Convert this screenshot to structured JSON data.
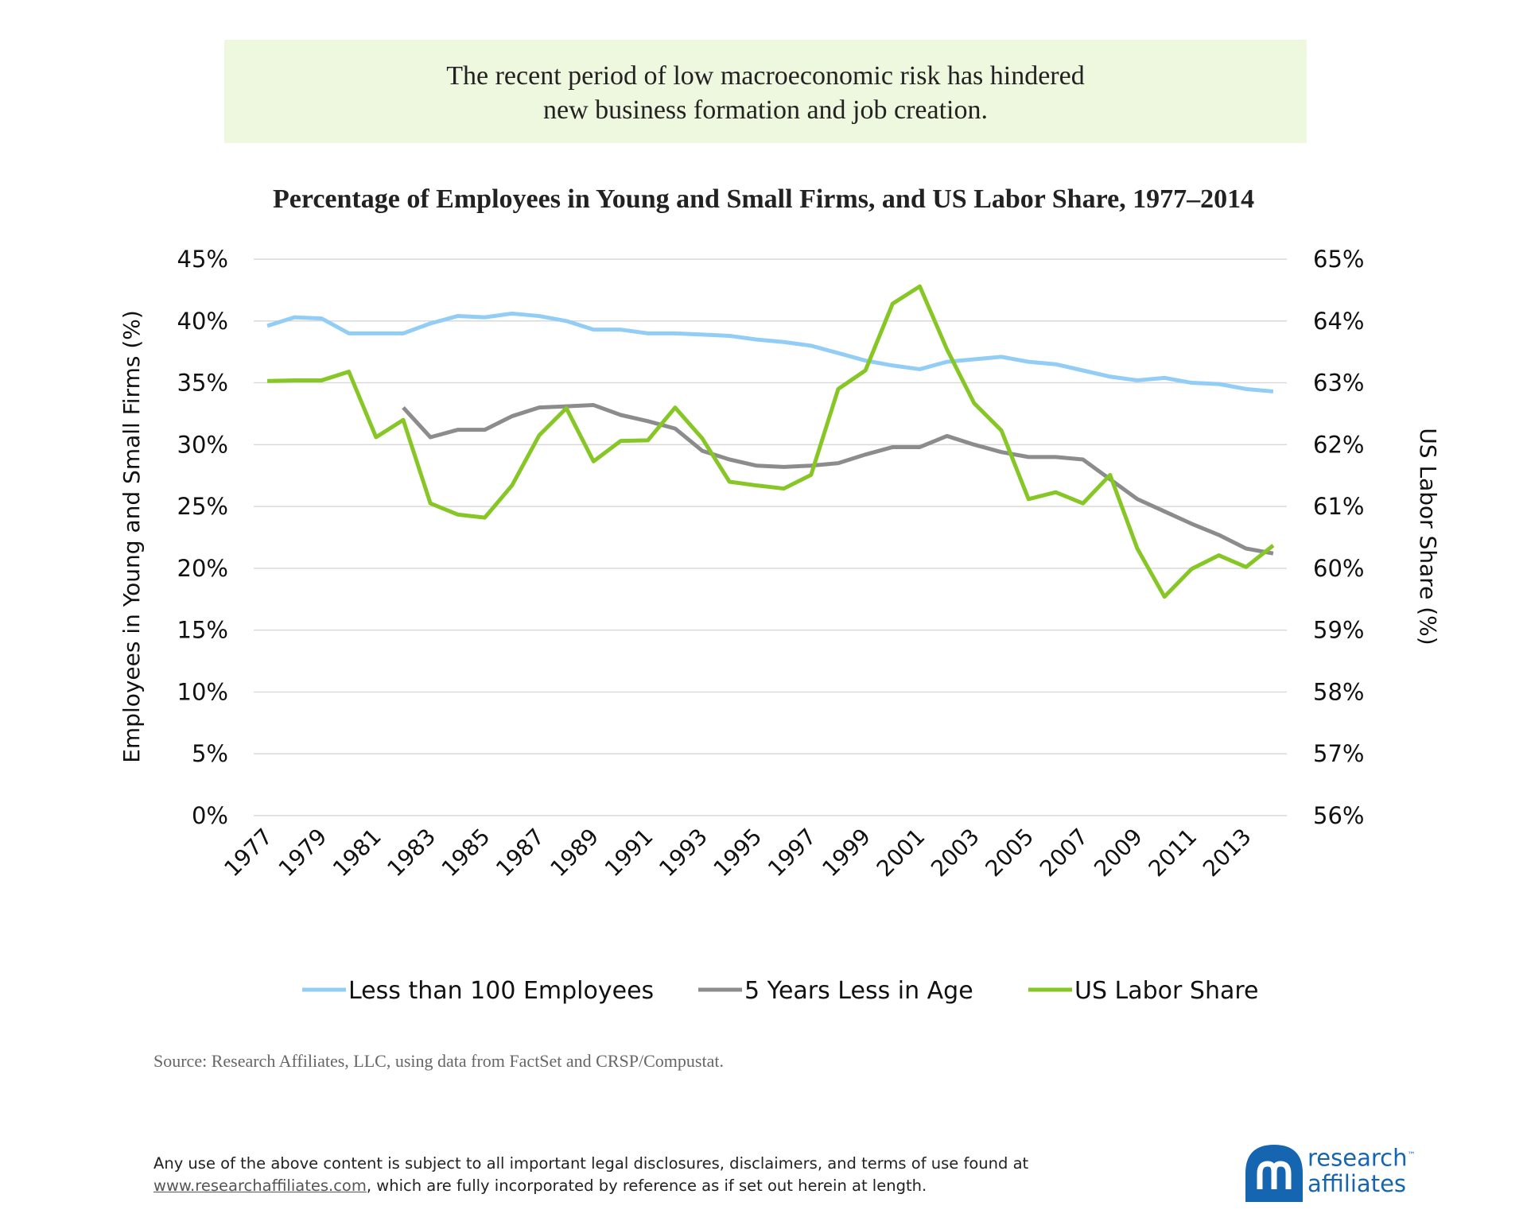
{
  "header": {
    "lines": [
      "The recent period of low macroeconomic risk has hindered",
      "new business formation and job creation."
    ]
  },
  "chart_data": {
    "type": "line",
    "title": "Percentage of Employees in Young and Small Firms, and US Labor Share, 1977–2014",
    "ylabel": "Employees in Young and Small Firms (%)",
    "y2label": "US Labor Share (%)",
    "x": [
      1977,
      1978,
      1979,
      1980,
      1981,
      1982,
      1983,
      1984,
      1985,
      1986,
      1987,
      1988,
      1989,
      1990,
      1991,
      1992,
      1993,
      1994,
      1995,
      1996,
      1997,
      1998,
      1999,
      2000,
      2001,
      2002,
      2003,
      2004,
      2005,
      2006,
      2007,
      2008,
      2009,
      2010,
      2011,
      2012,
      2013,
      2014
    ],
    "xlim": [
      1976.5,
      2014.5
    ],
    "xticks": [
      1977,
      1979,
      1981,
      1983,
      1985,
      1987,
      1989,
      1991,
      1993,
      1995,
      1997,
      1999,
      2001,
      2003,
      2005,
      2007,
      2009,
      2011,
      2013
    ],
    "ylim": [
      0,
      45
    ],
    "yticks": [
      {
        "value": 0,
        "label": "0%"
      },
      {
        "value": 5,
        "label": "5%"
      },
      {
        "value": 10,
        "label": "10%"
      },
      {
        "value": 15,
        "label": "15%"
      },
      {
        "value": 20,
        "label": "20%"
      },
      {
        "value": 25,
        "label": "25%"
      },
      {
        "value": 30,
        "label": "30%"
      },
      {
        "value": 35,
        "label": "35%"
      },
      {
        "value": 40,
        "label": "40%"
      },
      {
        "value": 45,
        "label": "45%"
      }
    ],
    "y2lim": [
      56,
      65
    ],
    "y2ticks": [
      {
        "value": 56,
        "label": "56%"
      },
      {
        "value": 57,
        "label": "57%"
      },
      {
        "value": 58,
        "label": "58%"
      },
      {
        "value": 59,
        "label": "59%"
      },
      {
        "value": 60,
        "label": "60%"
      },
      {
        "value": 61,
        "label": "61%"
      },
      {
        "value": 62,
        "label": "62%"
      },
      {
        "value": 63,
        "label": "63%"
      },
      {
        "value": 64,
        "label": "64%"
      },
      {
        "value": 65,
        "label": "65%"
      }
    ],
    "grid": true,
    "legend": "bottom",
    "series": [
      {
        "name": "Less than 100 Employees",
        "color": "#92cdf5",
        "values": [
          39.6,
          40.3,
          40.2,
          39.0,
          39.0,
          39.0,
          39.8,
          40.4,
          40.3,
          40.6,
          40.4,
          40.0,
          39.3,
          39.3,
          39.0,
          39.0,
          38.9,
          38.8,
          38.5,
          38.3,
          38.0,
          37.4,
          36.8,
          36.4,
          36.1,
          36.7,
          36.9,
          37.1,
          36.7,
          36.5,
          36.0,
          35.5,
          35.2,
          35.4,
          35.0,
          34.9,
          34.5,
          34.3
        ]
      },
      {
        "name": "5 Years Less in Age",
        "color": "#8c8c8c",
        "values": [
          null,
          null,
          null,
          null,
          null,
          33.0,
          30.6,
          31.2,
          31.2,
          32.3,
          33.0,
          33.1,
          33.2,
          32.4,
          31.9,
          31.3,
          29.5,
          28.8,
          28.3,
          28.2,
          28.3,
          28.5,
          29.2,
          29.8,
          29.8,
          30.7,
          30.0,
          29.4,
          29.0,
          29.0,
          28.8,
          27.2,
          25.6,
          24.6,
          23.6,
          22.7,
          21.6,
          21.2
        ]
      },
      {
        "name": "US Labor Share",
        "color": "#86c726",
        "axis": "y2",
        "values": [
          63.03,
          63.04,
          63.04,
          63.18,
          62.12,
          62.4,
          61.05,
          60.87,
          60.82,
          61.34,
          62.15,
          62.59,
          61.73,
          62.06,
          62.07,
          62.6,
          62.1,
          61.4,
          61.34,
          61.29,
          61.51,
          62.9,
          63.2,
          64.28,
          64.56,
          63.54,
          62.67,
          62.23,
          61.12,
          61.23,
          61.05,
          61.51,
          60.32,
          59.54,
          59.99,
          60.21,
          60.02,
          60.37
        ]
      }
    ],
    "source": "Source:  Research Affiliates, LLC, using data from FactSet and CRSP/Compustat."
  },
  "footer": {
    "line1": "Any use of the above content is subject to all important legal disclosures, disclaimers, and terms of use found at",
    "link": "www.researchaffiliates.com",
    "line2": ", which are fully incorporated by reference as if set out herein at length."
  },
  "logo": {
    "word1": "research",
    "trademark": "™",
    "word2": "affiliates"
  }
}
